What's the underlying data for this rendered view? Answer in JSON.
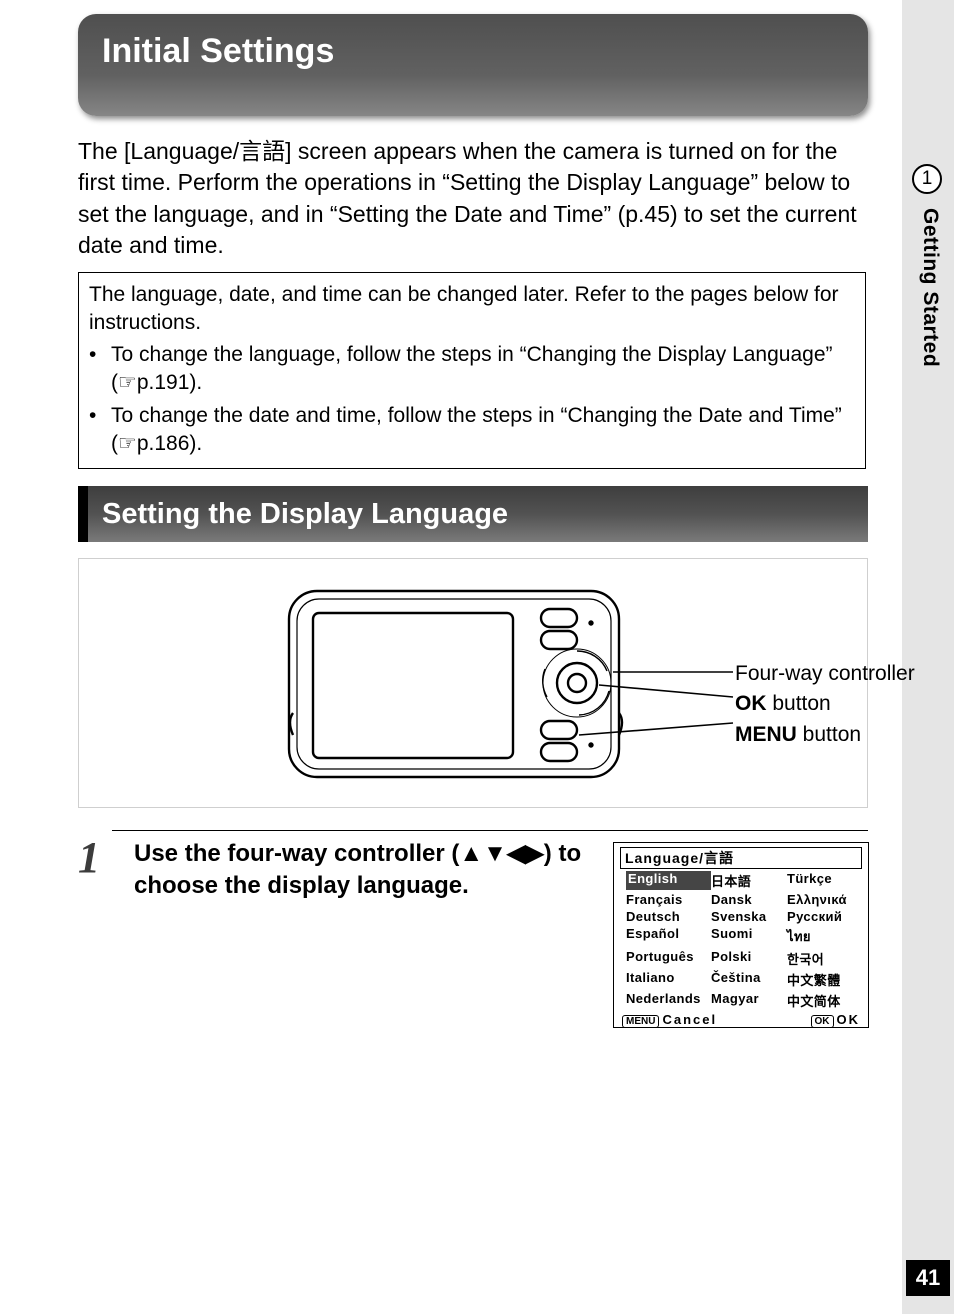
{
  "title_banner": "Initial Settings",
  "intro_text": "The [Language/言語] screen appears when the camera is turned on for the first time. Perform the operations in “Setting the Display Language” below to set the language, and in “Setting the Date and Time” (p.45) to set the current date and time.",
  "infobox": {
    "lead": "The language, date, and time can be changed later. Refer to the pages below for instructions.",
    "bullets": [
      "To change the language, follow the steps in “Changing the Display Language” (☞p.191).",
      "To change the date and time, follow the steps in “Changing the Date and Time” (☞p.186)."
    ]
  },
  "section_heading": "Setting the Display Language",
  "callouts": {
    "fourway": "Four-way controller",
    "ok_bold": "OK",
    "ok_rest": " button",
    "menu_bold": "MENU",
    "menu_rest": " button"
  },
  "step": {
    "number": "1",
    "text": "Use the four-way controller (▲▼◀▶) to choose the display language."
  },
  "lcd": {
    "title": "Language/言語",
    "columns": [
      [
        "English",
        "Français",
        "Deutsch",
        "Español",
        "Português",
        "Italiano",
        "Nederlands"
      ],
      [
        "日本語",
        "Dansk",
        "Svenska",
        "Suomi",
        "Polski",
        "Čeština",
        "Magyar"
      ],
      [
        "Türkçe",
        "Ελληνικά",
        "Русский",
        "ไทย",
        "한국어",
        "中文繁體",
        "中文简体"
      ]
    ],
    "selected": "English",
    "footer_left_btn": "MENU",
    "footer_left": "Cancel",
    "footer_right_btn": "OK",
    "footer_right": "OK"
  },
  "side": {
    "chapter_number": "1",
    "chapter_label": "Getting Started"
  },
  "page_number": "41",
  "colors": {
    "banner_gradient_top": "#4f4f4f",
    "banner_gradient_bottom": "#868686",
    "section_gradient_top": "#3e3e3e",
    "section_gradient_bottom": "#7a7a7a",
    "side_tab_bg": "#e5e5e5",
    "lcd_selected_bg": "#454545",
    "page_badge_bg": "#000000"
  }
}
